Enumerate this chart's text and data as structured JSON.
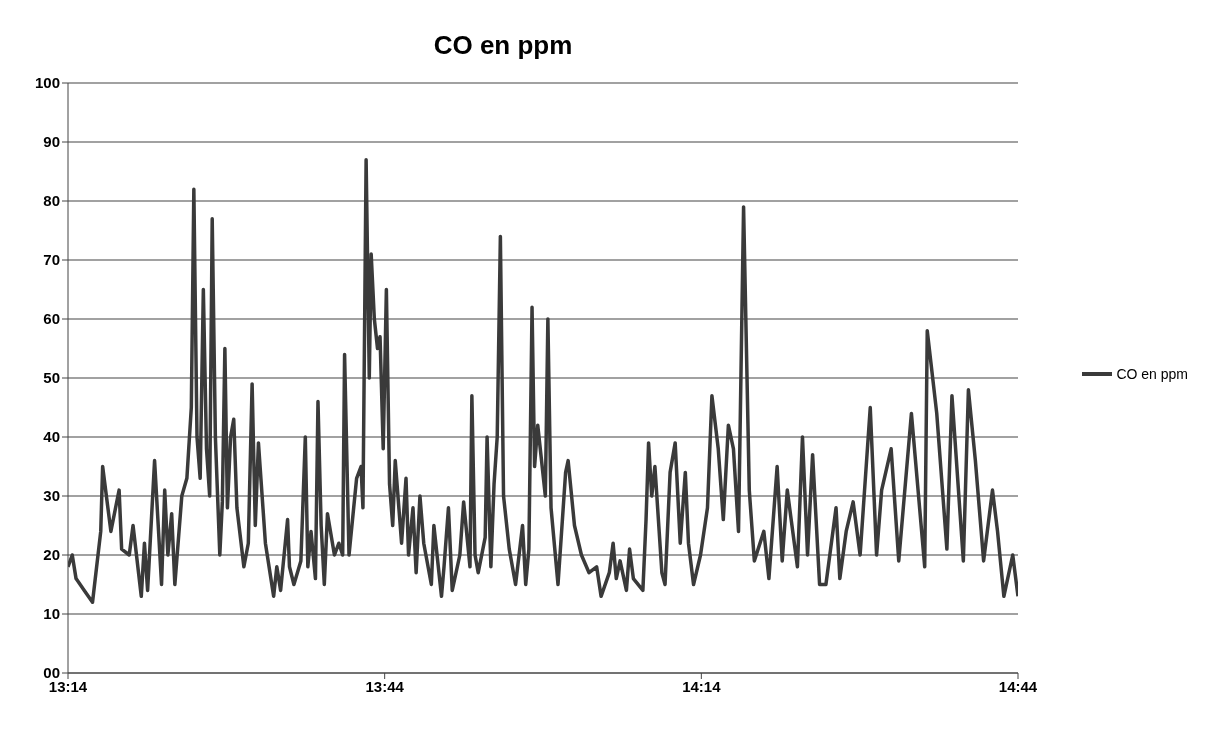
{
  "chart_data": {
    "type": "line",
    "title": "CO en ppm",
    "xlim": [
      13.2333,
      14.7333
    ],
    "xticks": [
      {
        "value": 13.2333,
        "label": "13:14"
      },
      {
        "value": 13.7333,
        "label": "13:44"
      },
      {
        "value": 14.2333,
        "label": "14:14"
      },
      {
        "value": 14.7333,
        "label": "14:44"
      }
    ],
    "ylim": [
      0,
      100
    ],
    "yticks": [
      {
        "value": 0,
        "label": "00"
      },
      10,
      20,
      30,
      40,
      50,
      60,
      70,
      80,
      90,
      100
    ],
    "grid": "y",
    "legend": "right",
    "marker": "none",
    "line_style": "solid",
    "series": [
      {
        "name": "CO en ppm",
        "color": "#3a3a3a",
        "x": [
          13.2333,
          13.24,
          13.246,
          13.259,
          13.272,
          13.285,
          13.288,
          13.301,
          13.314,
          13.318,
          13.33,
          13.336,
          13.349,
          13.354,
          13.359,
          13.37,
          13.381,
          13.386,
          13.391,
          13.397,
          13.402,
          13.413,
          13.421,
          13.428,
          13.432,
          13.437,
          13.442,
          13.447,
          13.452,
          13.457,
          13.461,
          13.466,
          13.473,
          13.477,
          13.481,
          13.485,
          13.49,
          13.495,
          13.5,
          13.511,
          13.518,
          13.524,
          13.529,
          13.534,
          13.545,
          13.558,
          13.563,
          13.569,
          13.58,
          13.583,
          13.59,
          13.601,
          13.608,
          13.612,
          13.617,
          13.624,
          13.628,
          13.633,
          13.638,
          13.643,
          13.654,
          13.661,
          13.667,
          13.67,
          13.677,
          13.689,
          13.696,
          13.699,
          13.704,
          13.709,
          13.712,
          13.717,
          13.722,
          13.726,
          13.731,
          13.736,
          13.741,
          13.746,
          13.75,
          13.76,
          13.767,
          13.771,
          13.778,
          13.783,
          13.789,
          13.795,
          13.807,
          13.811,
          13.823,
          13.827,
          13.834,
          13.84,
          13.852,
          13.858,
          13.868,
          13.871,
          13.876,
          13.881,
          13.892,
          13.895,
          13.901,
          13.906,
          13.911,
          13.916,
          13.921,
          13.93,
          13.94,
          13.951,
          13.956,
          13.961,
          13.966,
          13.97,
          13.975,
          13.987,
          13.991,
          13.996,
          14.007,
          14.019,
          14.023,
          14.033,
          14.044,
          14.056,
          14.068,
          14.075,
          14.088,
          14.094,
          14.099,
          14.105,
          14.115,
          14.12,
          14.126,
          14.141,
          14.146,
          14.15,
          14.155,
          14.16,
          14.171,
          14.176,
          14.184,
          14.192,
          14.2,
          14.208,
          14.213,
          14.221,
          14.232,
          14.243,
          14.25,
          14.26,
          14.268,
          14.276,
          14.284,
          14.292,
          14.3,
          14.309,
          14.317,
          14.332,
          14.34,
          14.353,
          14.361,
          14.369,
          14.385,
          14.393,
          14.401,
          14.409,
          14.42,
          14.43,
          14.446,
          14.452,
          14.462,
          14.473,
          14.484,
          14.5,
          14.51,
          14.518,
          14.533,
          14.545,
          14.565,
          14.586,
          14.59,
          14.605,
          14.621,
          14.629,
          14.647,
          14.655,
          14.666,
          14.679,
          14.693,
          14.701,
          14.711,
          14.725,
          14.7333
        ],
        "values": [
          18,
          20,
          16,
          14,
          12,
          24,
          35,
          24,
          31,
          21,
          20,
          25,
          13,
          22,
          14,
          36,
          15,
          31,
          20,
          27,
          15,
          30,
          33,
          45,
          82,
          40,
          33,
          65,
          38,
          30,
          77,
          40,
          20,
          29,
          55,
          28,
          40,
          43,
          28,
          18,
          22,
          49,
          25,
          39,
          22,
          13,
          18,
          14,
          26,
          18,
          15,
          19,
          40,
          18,
          24,
          16,
          46,
          25,
          15,
          27,
          20,
          22,
          20,
          54,
          20,
          33,
          35,
          28,
          87,
          50,
          71,
          60,
          55,
          57,
          38,
          65,
          32,
          25,
          36,
          22,
          33,
          20,
          28,
          17,
          30,
          22,
          15,
          25,
          13,
          18,
          28,
          14,
          20,
          29,
          18,
          47,
          20,
          17,
          23,
          40,
          18,
          32,
          40,
          74,
          30,
          21,
          15,
          25,
          15,
          21,
          62,
          35,
          42,
          30,
          60,
          28,
          15,
          34,
          36,
          25,
          20,
          17,
          18,
          13,
          17,
          22,
          16,
          19,
          14,
          21,
          16,
          14,
          26,
          39,
          30,
          35,
          17,
          15,
          34,
          39,
          22,
          34,
          22,
          15,
          20,
          28,
          47,
          38,
          26,
          42,
          38,
          24,
          79,
          31,
          19,
          24,
          16,
          35,
          19,
          31,
          18,
          40,
          20,
          37,
          15,
          15,
          28,
          16,
          24,
          29,
          20,
          45,
          20,
          31,
          38,
          19,
          44,
          18,
          58,
          44,
          21,
          47,
          19,
          48,
          36,
          19,
          31,
          24,
          13,
          20,
          13
        ]
      }
    ]
  }
}
